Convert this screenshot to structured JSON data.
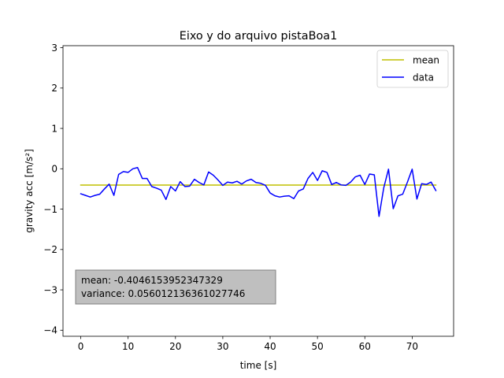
{
  "chart_data": {
    "type": "line",
    "title": "Eixo y do arquivo pistaBoa1",
    "xlabel": "time [s]",
    "ylabel": "gravity acc [m/s²]",
    "xlim": [
      -3.75,
      78.75
    ],
    "ylim": [
      -4.15,
      3.05
    ],
    "xticks": [
      0,
      10,
      20,
      30,
      40,
      50,
      60,
      70
    ],
    "yticks": [
      -4,
      -3,
      -2,
      -1,
      0,
      1,
      2,
      3
    ],
    "grid": false,
    "legend_position": "top-right",
    "series": [
      {
        "name": "mean",
        "color": "#bfbf00",
        "x": [
          0,
          75
        ],
        "y": [
          -0.4046,
          -0.4046
        ]
      },
      {
        "name": "data",
        "color": "#0000ff",
        "x": [
          0,
          1,
          2,
          3,
          4,
          5,
          6,
          7,
          8,
          9,
          10,
          11,
          12,
          13,
          14,
          15,
          16,
          17,
          18,
          19,
          20,
          21,
          22,
          23,
          24,
          25,
          26,
          27,
          28,
          29,
          30,
          31,
          32,
          33,
          34,
          35,
          36,
          37,
          38,
          39,
          40,
          41,
          42,
          43,
          44,
          45,
          46,
          47,
          48,
          49,
          50,
          51,
          52,
          53,
          54,
          55,
          56,
          57,
          58,
          59,
          60,
          61,
          62,
          63,
          64,
          65,
          66,
          67,
          68,
          69,
          70,
          71,
          72,
          73,
          74,
          75
        ],
        "y": [
          -0.62,
          -0.66,
          -0.7,
          -0.66,
          -0.63,
          -0.5,
          -0.38,
          -0.66,
          -0.14,
          -0.07,
          -0.09,
          0.0,
          0.03,
          -0.24,
          -0.24,
          -0.44,
          -0.48,
          -0.53,
          -0.76,
          -0.44,
          -0.55,
          -0.32,
          -0.44,
          -0.43,
          -0.26,
          -0.34,
          -0.4,
          -0.08,
          -0.16,
          -0.28,
          -0.41,
          -0.33,
          -0.35,
          -0.31,
          -0.38,
          -0.3,
          -0.26,
          -0.34,
          -0.36,
          -0.41,
          -0.6,
          -0.67,
          -0.7,
          -0.68,
          -0.67,
          -0.74,
          -0.55,
          -0.5,
          -0.24,
          -0.09,
          -0.29,
          -0.05,
          -0.09,
          -0.39,
          -0.34,
          -0.4,
          -0.41,
          -0.33,
          -0.2,
          -0.16,
          -0.39,
          -0.13,
          -0.15,
          -1.18,
          -0.47,
          -0.01,
          -0.99,
          -0.67,
          -0.63,
          -0.33,
          -0.01,
          -0.75,
          -0.37,
          -0.39,
          -0.33,
          -0.54
        ]
      }
    ],
    "annotation": {
      "mean_text": "mean: -0.4046153952347329",
      "variance_text": "variance: 0.056012136361027746"
    }
  }
}
